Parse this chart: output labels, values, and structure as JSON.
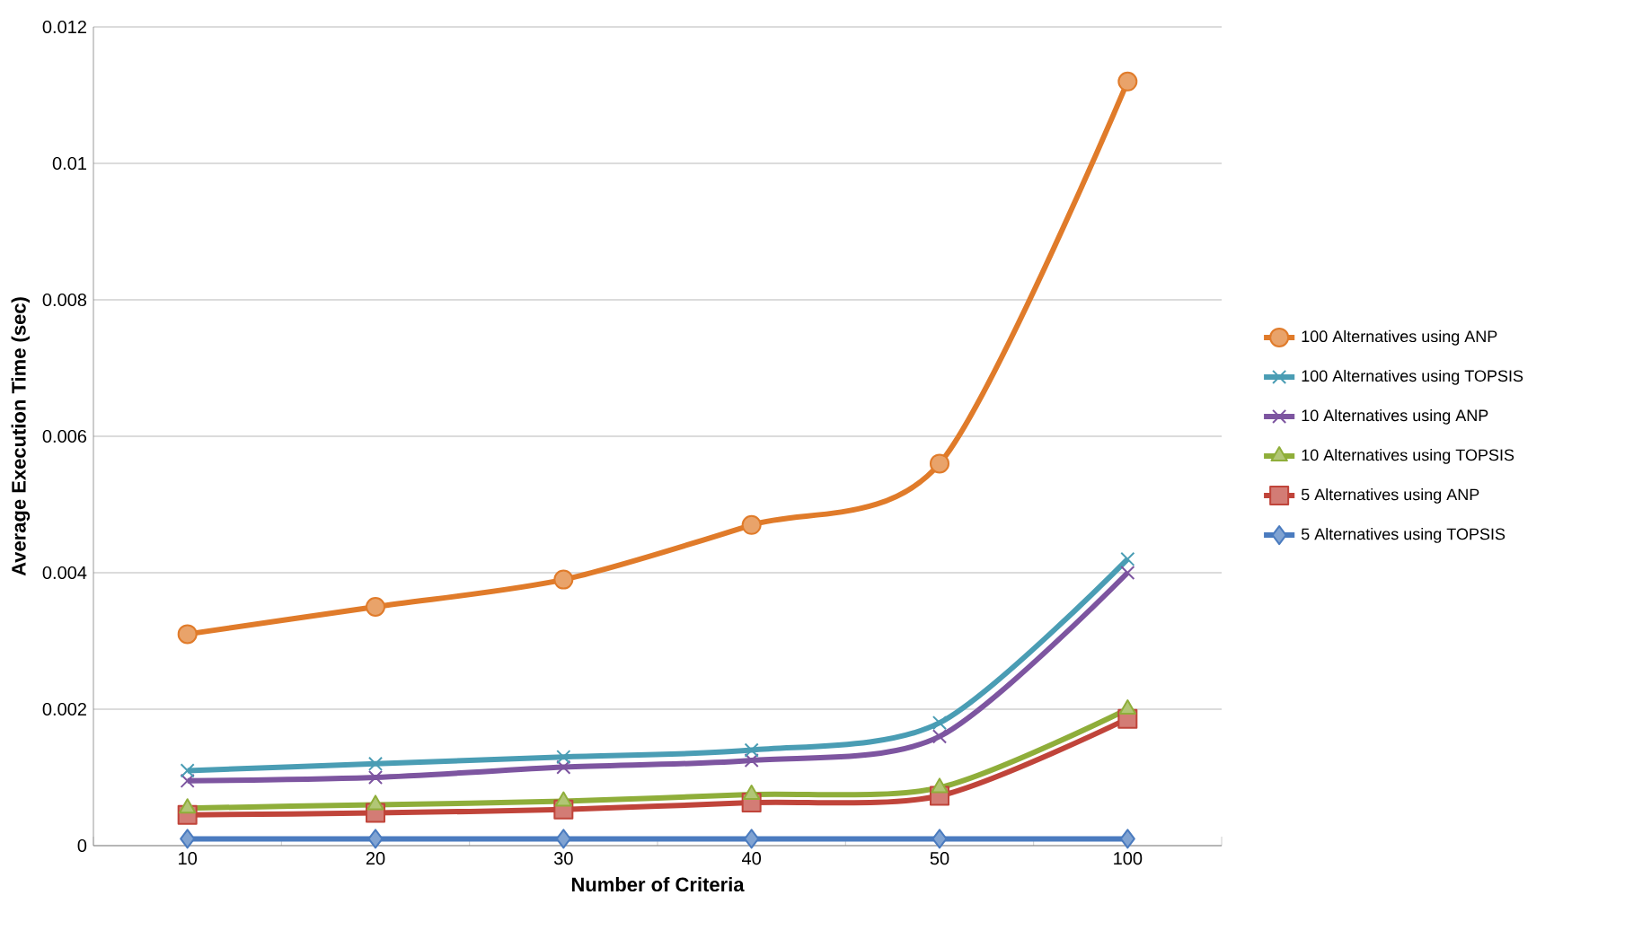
{
  "chart_data": {
    "type": "line",
    "xlabel": "Number of Criteria",
    "ylabel": "Average Execution Time (sec)",
    "categories": [
      "10",
      "20",
      "30",
      "40",
      "50",
      "100"
    ],
    "ylim": [
      0,
      0.012
    ],
    "yticks": [
      0,
      0.002,
      0.004,
      0.006,
      0.008,
      0.01,
      0.012
    ],
    "grid": "y",
    "legend": "right",
    "line_style": "solid",
    "series": [
      {
        "name": "100 Alternatives using ANP",
        "color": "#e07b2a",
        "marker": "circle",
        "values": [
          0.0031,
          0.0035,
          0.0039,
          0.0047,
          0.0056,
          0.0112
        ]
      },
      {
        "name": "100 Alternatives using TOPSIS",
        "color": "#4a9db4",
        "marker": "cross",
        "values": [
          0.0011,
          0.0012,
          0.0013,
          0.0014,
          0.0018,
          0.0042
        ]
      },
      {
        "name": "10 Alternatives using ANP",
        "color": "#7d55a0",
        "marker": "cross",
        "values": [
          0.00095,
          0.001,
          0.00115,
          0.00125,
          0.0016,
          0.004
        ]
      },
      {
        "name": "10 Alternatives using TOPSIS",
        "color": "#8fae3a",
        "marker": "triangle",
        "values": [
          0.00055,
          0.0006,
          0.00065,
          0.00075,
          0.00085,
          0.002
        ]
      },
      {
        "name": "5 Alternatives using ANP",
        "color": "#c0443a",
        "marker": "square",
        "values": [
          0.00045,
          0.00048,
          0.00053,
          0.00063,
          0.00073,
          0.00186
        ]
      },
      {
        "name": "5 Alternatives using TOPSIS",
        "color": "#4a7bbf",
        "marker": "diamond",
        "values": [
          0.0001,
          0.0001,
          0.0001,
          0.0001,
          0.0001,
          0.0001
        ]
      }
    ]
  }
}
